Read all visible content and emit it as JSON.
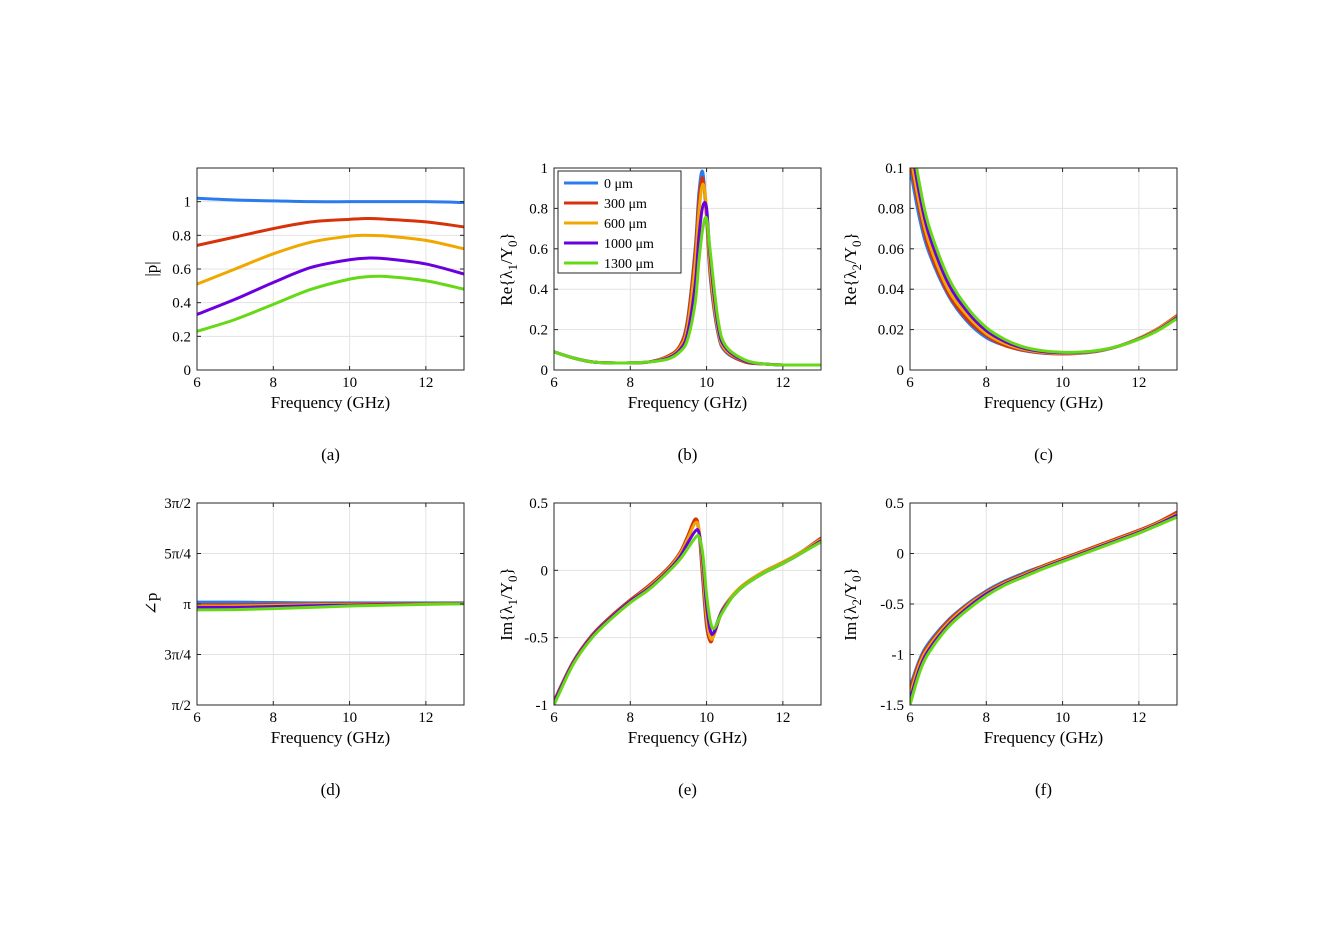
{
  "series_names": [
    "0 μm",
    "300 μm",
    "600 μm",
    "1000 μm",
    "1300 μm"
  ],
  "series_colors": [
    "#2b7bf0",
    "#d8320a",
    "#f0a800",
    "#6a00e0",
    "#66d915"
  ],
  "chart_data": [
    {
      "type": "line",
      "panel": "a",
      "caption": "(a)",
      "xlabel": "Frequency (GHz)",
      "ylabel": "|p|",
      "xlim": [
        6,
        13
      ],
      "ylim": [
        0,
        1.2
      ],
      "xticks": [
        6,
        8,
        10,
        12
      ],
      "xtick_labels": [
        "6",
        "8",
        "10",
        "12"
      ],
      "yticks": [
        0,
        0.2,
        0.4,
        0.6,
        0.8,
        1
      ],
      "ytick_labels": [
        "0",
        "0.2",
        "0.4",
        "0.6",
        "0.8",
        "1"
      ],
      "grid": true,
      "x": [
        6,
        7,
        8,
        9,
        10,
        10.5,
        11,
        12,
        13
      ],
      "series": [
        {
          "name": "0 μm",
          "values": [
            1.02,
            1.01,
            1.005,
            1.0,
            1.0,
            1.0,
            1.0,
            1.0,
            0.995
          ]
        },
        {
          "name": "300 μm",
          "values": [
            0.74,
            0.79,
            0.84,
            0.88,
            0.895,
            0.9,
            0.895,
            0.88,
            0.85
          ]
        },
        {
          "name": "600 μm",
          "values": [
            0.51,
            0.6,
            0.69,
            0.76,
            0.795,
            0.8,
            0.795,
            0.77,
            0.72
          ]
        },
        {
          "name": "1000 μm",
          "values": [
            0.33,
            0.42,
            0.52,
            0.61,
            0.655,
            0.665,
            0.66,
            0.63,
            0.57
          ]
        },
        {
          "name": "1300 μm",
          "values": [
            0.23,
            0.3,
            0.39,
            0.48,
            0.54,
            0.555,
            0.555,
            0.53,
            0.48
          ]
        }
      ]
    },
    {
      "type": "line",
      "panel": "b",
      "caption": "(b)",
      "xlabel": "Frequency (GHz)",
      "ylabel": "Re{λ1/Y0}",
      "xlim": [
        6,
        13
      ],
      "ylim": [
        0,
        1
      ],
      "xticks": [
        6,
        8,
        10,
        12
      ],
      "xtick_labels": [
        "6",
        "8",
        "10",
        "12"
      ],
      "yticks": [
        0,
        0.2,
        0.4,
        0.6,
        0.8,
        1
      ],
      "ytick_labels": [
        "0",
        "0.2",
        "0.4",
        "0.6",
        "0.8",
        "1"
      ],
      "grid": true,
      "legend": "top-left",
      "x": [
        6,
        6.5,
        7,
        7.5,
        8,
        8.5,
        9,
        9.3,
        9.5,
        9.7,
        9.8,
        9.9,
        10.0,
        10.1,
        10.3,
        10.5,
        11,
        11.5,
        12,
        12.5,
        13
      ],
      "series": [
        {
          "name": "0 μm",
          "values": [
            0.09,
            0.06,
            0.04,
            0.035,
            0.035,
            0.04,
            0.07,
            0.12,
            0.25,
            0.6,
            0.88,
            0.98,
            0.75,
            0.45,
            0.18,
            0.09,
            0.04,
            0.03,
            0.025,
            0.025,
            0.025
          ]
        },
        {
          "name": "300 μm",
          "values": [
            0.09,
            0.06,
            0.04,
            0.035,
            0.035,
            0.04,
            0.07,
            0.12,
            0.24,
            0.58,
            0.84,
            0.95,
            0.76,
            0.47,
            0.19,
            0.095,
            0.04,
            0.03,
            0.025,
            0.025,
            0.025
          ]
        },
        {
          "name": "600 μm",
          "values": [
            0.09,
            0.06,
            0.04,
            0.035,
            0.035,
            0.04,
            0.065,
            0.11,
            0.21,
            0.52,
            0.78,
            0.92,
            0.8,
            0.5,
            0.2,
            0.1,
            0.045,
            0.03,
            0.025,
            0.025,
            0.025
          ]
        },
        {
          "name": "1000 μm",
          "values": [
            0.09,
            0.06,
            0.04,
            0.035,
            0.035,
            0.04,
            0.06,
            0.1,
            0.18,
            0.42,
            0.66,
            0.81,
            0.8,
            0.55,
            0.22,
            0.11,
            0.045,
            0.03,
            0.025,
            0.025,
            0.025
          ]
        },
        {
          "name": "1300 μm",
          "values": [
            0.09,
            0.06,
            0.04,
            0.035,
            0.035,
            0.04,
            0.055,
            0.09,
            0.15,
            0.33,
            0.54,
            0.7,
            0.75,
            0.58,
            0.25,
            0.12,
            0.05,
            0.03,
            0.025,
            0.025,
            0.025
          ]
        }
      ]
    },
    {
      "type": "line",
      "panel": "c",
      "caption": "(c)",
      "xlabel": "Frequency (GHz)",
      "ylabel": "Re{λ2/Y0}",
      "xlim": [
        6,
        13
      ],
      "ylim": [
        0,
        0.1
      ],
      "xticks": [
        6,
        8,
        10,
        12
      ],
      "xtick_labels": [
        "6",
        "8",
        "10",
        "12"
      ],
      "yticks": [
        0,
        0.02,
        0.04,
        0.06,
        0.08,
        0.1
      ],
      "ytick_labels": [
        "0",
        "0.02",
        "0.04",
        "0.06",
        "0.08",
        "0.1"
      ],
      "grid": true,
      "x": [
        6.0,
        6.25,
        6.5,
        7,
        7.5,
        8,
        8.5,
        9,
        9.5,
        10,
        10.5,
        11,
        11.5,
        12,
        12.5,
        13
      ],
      "series": [
        {
          "name": "0 μm",
          "values": [
            0.1,
            0.075,
            0.058,
            0.037,
            0.024,
            0.016,
            0.012,
            0.0095,
            0.0083,
            0.008,
            0.0083,
            0.0095,
            0.012,
            0.0155,
            0.02,
            0.026
          ]
        },
        {
          "name": "300 μm",
          "values": [
            0.104,
            0.079,
            0.06,
            0.038,
            0.025,
            0.017,
            0.012,
            0.0097,
            0.0084,
            0.008,
            0.0084,
            0.0096,
            0.012,
            0.0157,
            0.0205,
            0.027
          ]
        },
        {
          "name": "600 μm",
          "values": [
            0.108,
            0.082,
            0.063,
            0.04,
            0.027,
            0.018,
            0.013,
            0.0101,
            0.0087,
            0.0082,
            0.0085,
            0.0097,
            0.012,
            0.0156,
            0.0202,
            0.0265
          ]
        },
        {
          "name": "1000 μm",
          "values": [
            0.114,
            0.087,
            0.067,
            0.043,
            0.029,
            0.0195,
            0.014,
            0.0107,
            0.0091,
            0.0085,
            0.0087,
            0.0098,
            0.012,
            0.0154,
            0.0198,
            0.026
          ]
        },
        {
          "name": "1300 μm",
          "values": [
            0.12,
            0.092,
            0.071,
            0.046,
            0.031,
            0.021,
            0.015,
            0.0113,
            0.0095,
            0.0088,
            0.0089,
            0.0099,
            0.012,
            0.0152,
            0.0195,
            0.0255
          ]
        }
      ]
    },
    {
      "type": "line",
      "panel": "d",
      "caption": "(d)",
      "xlabel": "Frequency (GHz)",
      "ylabel": "∠p",
      "xlim": [
        6,
        13
      ],
      "ylim": [
        1.5708,
        4.7124
      ],
      "xticks": [
        6,
        8,
        10,
        12
      ],
      "xtick_labels": [
        "6",
        "8",
        "10",
        "12"
      ],
      "yticks": [
        1.5708,
        2.3562,
        3.1416,
        3.927,
        4.7124
      ],
      "ytick_labels": [
        "π/2",
        "3π/4",
        "π",
        "5π/4",
        "3π/2"
      ],
      "grid": true,
      "x": [
        6,
        7,
        8,
        9,
        10,
        11,
        12,
        13
      ],
      "series": [
        {
          "name": "0 μm",
          "values": [
            3.17,
            3.17,
            3.165,
            3.16,
            3.16,
            3.16,
            3.16,
            3.16
          ]
        },
        {
          "name": "300 μm",
          "values": [
            3.13,
            3.13,
            3.135,
            3.14,
            3.145,
            3.15,
            3.15,
            3.155
          ]
        },
        {
          "name": "600 μm",
          "values": [
            3.11,
            3.11,
            3.12,
            3.13,
            3.135,
            3.14,
            3.145,
            3.15
          ]
        },
        {
          "name": "1000 μm",
          "values": [
            3.09,
            3.09,
            3.1,
            3.115,
            3.125,
            3.135,
            3.14,
            3.15
          ]
        },
        {
          "name": "1300 μm",
          "values": [
            3.05,
            3.055,
            3.07,
            3.09,
            3.11,
            3.125,
            3.135,
            3.145
          ]
        }
      ]
    },
    {
      "type": "line",
      "panel": "e",
      "caption": "(e)",
      "xlabel": "Frequency (GHz)",
      "ylabel": "Im{λ1/Y0}",
      "xlim": [
        6,
        13
      ],
      "ylim": [
        -1,
        0.5
      ],
      "xticks": [
        6,
        8,
        10,
        12
      ],
      "xtick_labels": [
        "6",
        "8",
        "10",
        "12"
      ],
      "yticks": [
        -1,
        -0.5,
        0,
        0.5
      ],
      "ytick_labels": [
        "-1",
        "-0.5",
        "0",
        "0.5"
      ],
      "grid": true,
      "x": [
        6,
        6.5,
        7,
        7.5,
        8,
        8.5,
        9,
        9.3,
        9.5,
        9.7,
        9.8,
        9.9,
        10.0,
        10.1,
        10.2,
        10.4,
        10.7,
        11,
        11.5,
        12,
        12.5,
        13
      ],
      "series": [
        {
          "name": "0 μm",
          "values": [
            -0.97,
            -0.68,
            -0.48,
            -0.34,
            -0.22,
            -0.11,
            0.02,
            0.13,
            0.25,
            0.37,
            0.28,
            -0.08,
            -0.42,
            -0.52,
            -0.45,
            -0.3,
            -0.18,
            -0.1,
            -0.01,
            0.06,
            0.14,
            0.24
          ]
        },
        {
          "name": "300 μm",
          "values": [
            -0.97,
            -0.68,
            -0.48,
            -0.34,
            -0.22,
            -0.11,
            0.02,
            0.13,
            0.25,
            0.38,
            0.3,
            -0.05,
            -0.4,
            -0.53,
            -0.47,
            -0.3,
            -0.18,
            -0.1,
            -0.01,
            0.06,
            0.14,
            0.24
          ]
        },
        {
          "name": "600 μm",
          "values": [
            -0.98,
            -0.69,
            -0.49,
            -0.35,
            -0.23,
            -0.12,
            0.01,
            0.12,
            0.23,
            0.35,
            0.31,
            0.02,
            -0.34,
            -0.5,
            -0.48,
            -0.31,
            -0.18,
            -0.1,
            -0.01,
            0.06,
            0.14,
            0.23
          ]
        },
        {
          "name": "1000 μm",
          "values": [
            -0.98,
            -0.69,
            -0.49,
            -0.35,
            -0.23,
            -0.13,
            0.0,
            0.1,
            0.2,
            0.29,
            0.28,
            0.08,
            -0.26,
            -0.45,
            -0.46,
            -0.31,
            -0.19,
            -0.11,
            -0.02,
            0.05,
            0.13,
            0.22
          ]
        },
        {
          "name": "1300 μm",
          "values": [
            -1.0,
            -0.7,
            -0.5,
            -0.36,
            -0.24,
            -0.14,
            -0.01,
            0.08,
            0.16,
            0.24,
            0.25,
            0.12,
            -0.18,
            -0.38,
            -0.43,
            -0.32,
            -0.19,
            -0.11,
            -0.02,
            0.05,
            0.13,
            0.21
          ]
        }
      ]
    },
    {
      "type": "line",
      "panel": "f",
      "caption": "(f)",
      "xlabel": "Frequency (GHz)",
      "ylabel": "Im{λ2/Y0}",
      "xlim": [
        6,
        13
      ],
      "ylim": [
        -1.5,
        0.5
      ],
      "xticks": [
        6,
        8,
        10,
        12
      ],
      "xtick_labels": [
        "6",
        "8",
        "10",
        "12"
      ],
      "yticks": [
        -1.5,
        -1,
        -0.5,
        0,
        0.5
      ],
      "ytick_labels": [
        "-1.5",
        "-1",
        "-0.5",
        "0",
        "0.5"
      ],
      "grid": true,
      "x": [
        6.0,
        6.25,
        6.5,
        7,
        7.5,
        8,
        8.5,
        9,
        9.5,
        10,
        10.5,
        11,
        11.5,
        12,
        12.5,
        13
      ],
      "series": [
        {
          "name": "0 μm",
          "values": [
            -1.32,
            -1.05,
            -0.88,
            -0.66,
            -0.5,
            -0.37,
            -0.27,
            -0.19,
            -0.12,
            -0.05,
            0.02,
            0.09,
            0.16,
            0.23,
            0.31,
            0.41
          ]
        },
        {
          "name": "300 μm",
          "values": [
            -1.35,
            -1.07,
            -0.9,
            -0.67,
            -0.51,
            -0.38,
            -0.28,
            -0.2,
            -0.12,
            -0.05,
            0.02,
            0.09,
            0.16,
            0.23,
            0.31,
            0.41
          ]
        },
        {
          "name": "600 μm",
          "values": [
            -1.4,
            -1.1,
            -0.92,
            -0.69,
            -0.52,
            -0.39,
            -0.29,
            -0.21,
            -0.13,
            -0.06,
            0.01,
            0.08,
            0.15,
            0.22,
            0.3,
            0.39
          ]
        },
        {
          "name": "1000 μm",
          "values": [
            -1.45,
            -1.14,
            -0.95,
            -0.71,
            -0.54,
            -0.4,
            -0.3,
            -0.22,
            -0.14,
            -0.07,
            0.0,
            0.07,
            0.14,
            0.21,
            0.29,
            0.38
          ]
        },
        {
          "name": "1300 μm",
          "values": [
            -1.5,
            -1.18,
            -0.98,
            -0.73,
            -0.56,
            -0.42,
            -0.31,
            -0.23,
            -0.15,
            -0.08,
            -0.01,
            0.06,
            0.13,
            0.2,
            0.28,
            0.36
          ]
        }
      ]
    }
  ]
}
